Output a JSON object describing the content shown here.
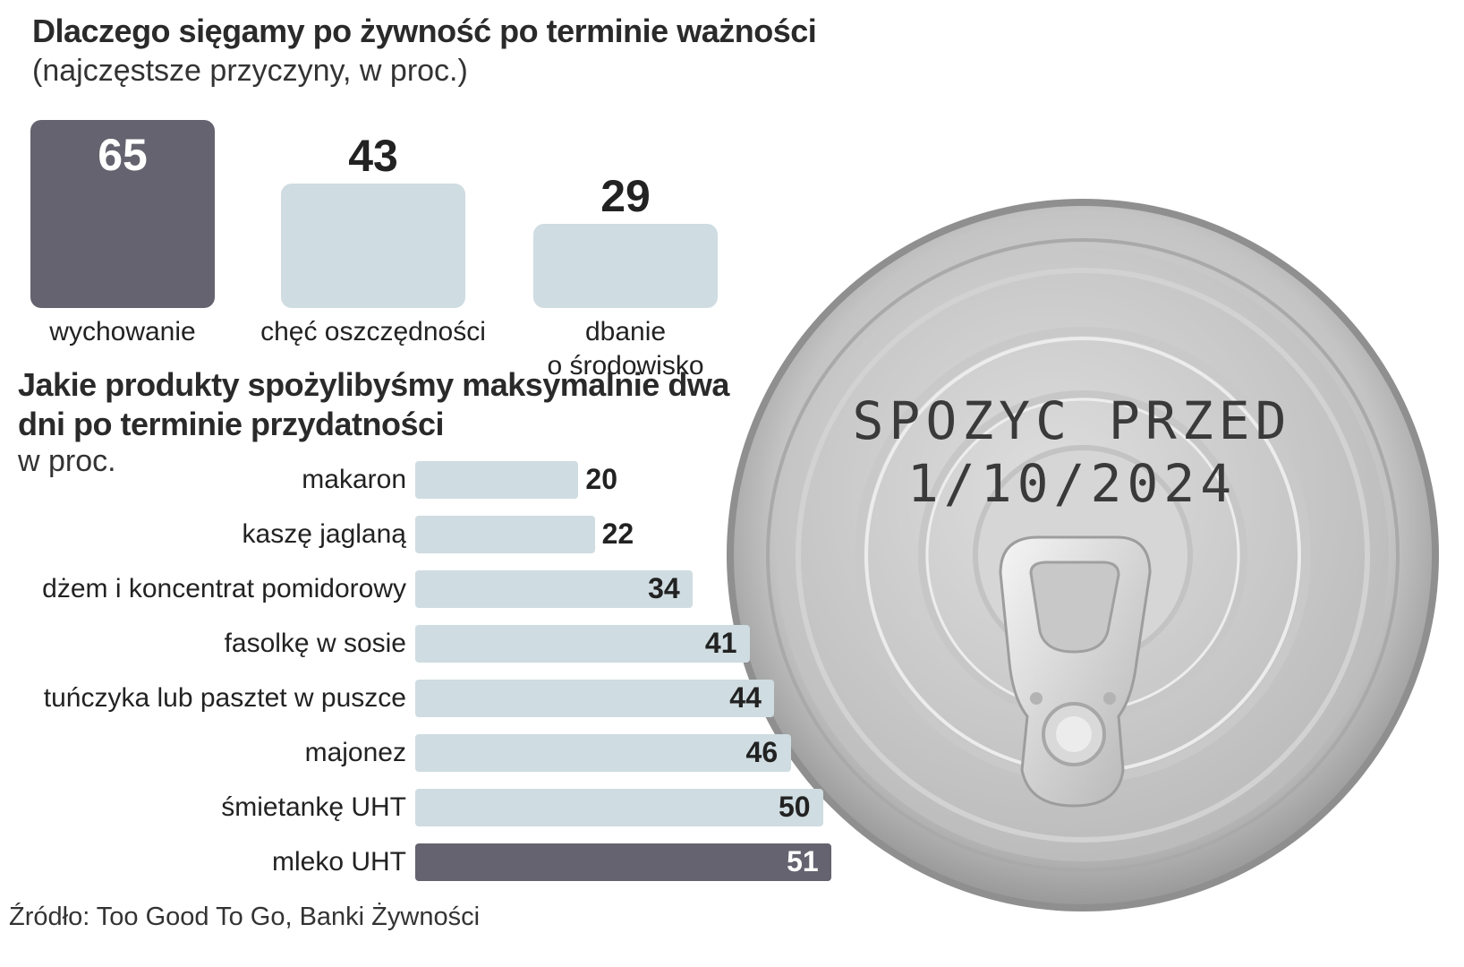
{
  "title": "Dlaczego sięgamy po żywność po terminie ważności",
  "subtitle": "(najczęstsze przyczyny, w proc.)",
  "source": "Źródło: Too Good To Go, Banki Żywności",
  "colors": {
    "highlight": "#65636f",
    "light": "#cfdce1",
    "text": "#222222"
  },
  "can_image": {
    "icon": "tin-can-lid-photo",
    "stamp_line1": "SPOZYC PRZED",
    "stamp_line2": "1/10/2024"
  },
  "chart_data": [
    {
      "type": "bar",
      "title": "Dlaczego sięgamy po żywność po terminie ważności",
      "subtitle": "(najczęstsze przyczyny, w proc.)",
      "orientation": "vertical",
      "categories": [
        "wychowanie",
        "chęć oszczędności",
        "dbanie\no środowisko"
      ],
      "values": [
        65,
        43,
        29
      ],
      "highlight_index": 0
    },
    {
      "type": "bar",
      "title": "Jakie produkty spożylibyśmy maksymalnie dwa dni po terminie przydatności",
      "unit_label": "w proc.",
      "orientation": "horizontal",
      "categories": [
        "makaron",
        "kaszę jaglaną",
        "dżem i koncentrat pomidorowy",
        "fasolkę w sosie",
        "tuńczyka lub pasztet w puszce",
        "majonez",
        "śmietankę UHT",
        "mleko UHT"
      ],
      "values": [
        20,
        22,
        34,
        41,
        44,
        46,
        50,
        51
      ],
      "highlight_index": 7
    }
  ]
}
